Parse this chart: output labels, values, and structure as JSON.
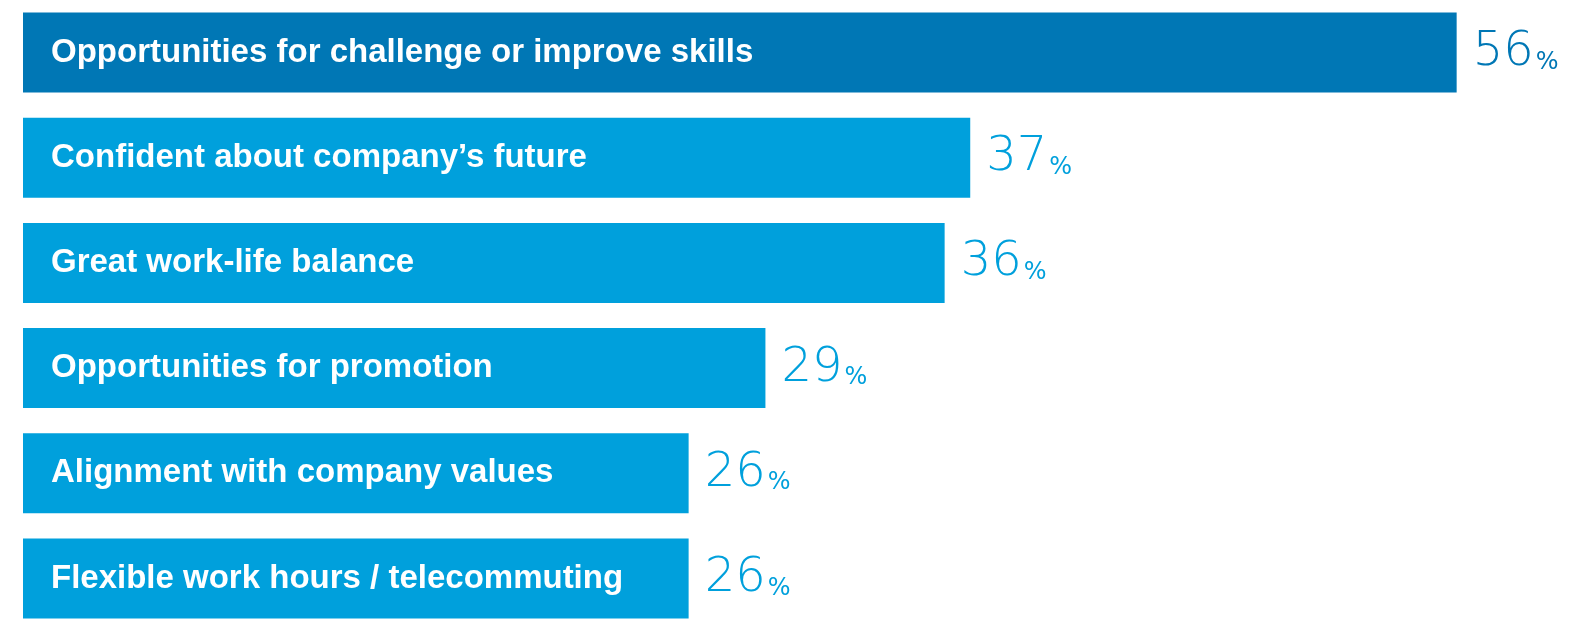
{
  "chart_data": {
    "type": "bar",
    "orientation": "horizontal",
    "legend": false,
    "categories": [
      "Opportunities for challenge or improve skills",
      "Confident about company’s future",
      "Great work-life balance",
      "Opportunities for promotion",
      "Alignment with company values",
      "Flexible work hours / telecommuting"
    ],
    "values": [
      56,
      37,
      36,
      29,
      26,
      26
    ],
    "colors": [
      "#0077b5",
      "#00a0dc",
      "#00a0dc",
      "#00a0dc",
      "#00a0dc",
      "#00a0dc"
    ],
    "value_labels": [
      "56%",
      "37%",
      "36%",
      "29%",
      "26%",
      "26%"
    ]
  }
}
